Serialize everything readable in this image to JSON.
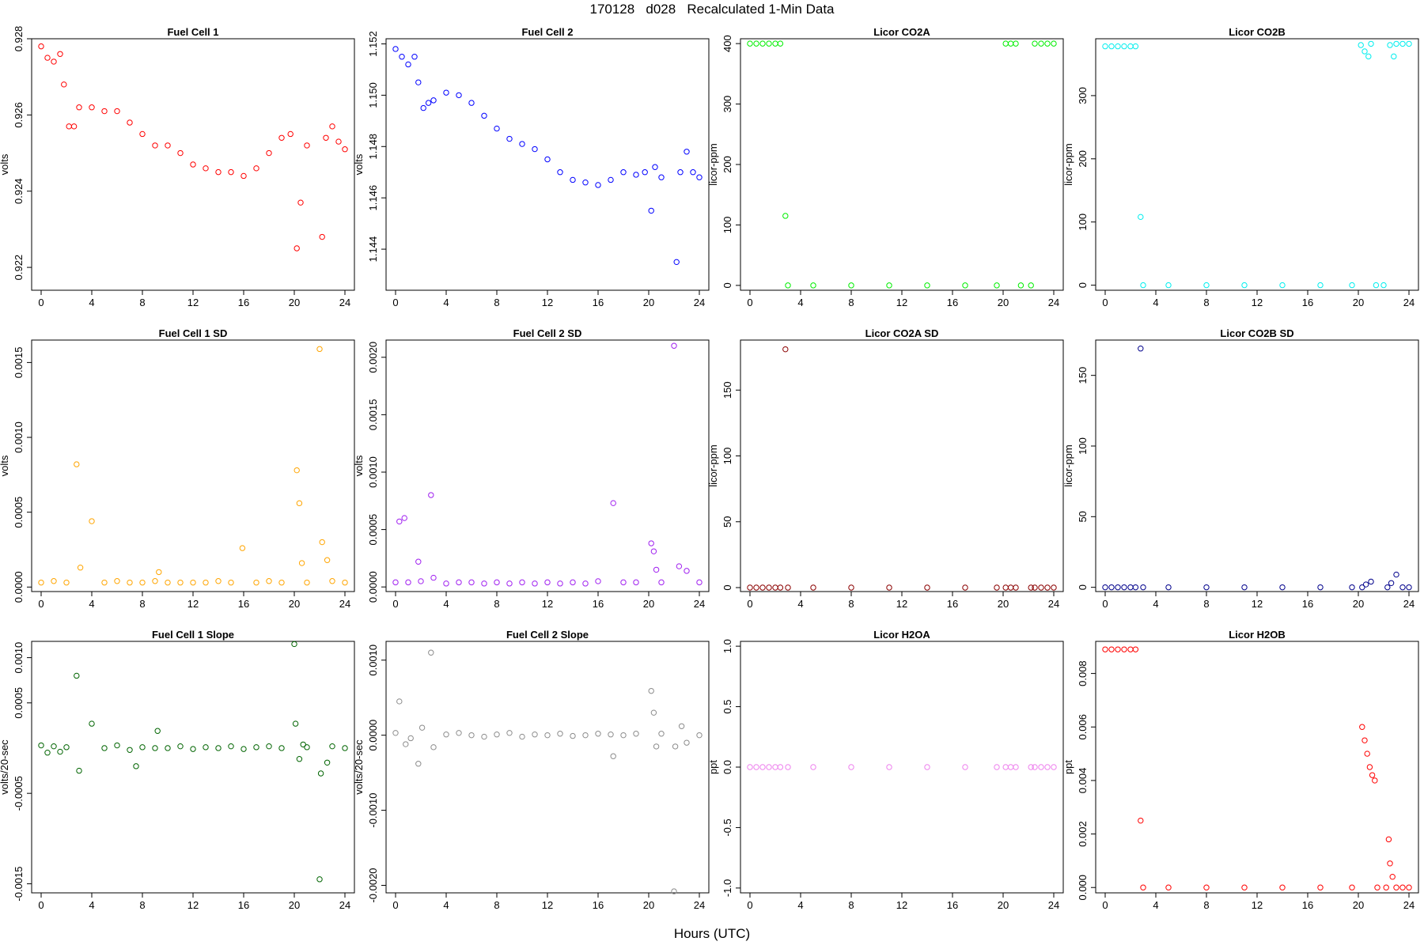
{
  "figure": {
    "title": "170128   d028   Recalculated 1-Min Data",
    "xlabel": "Hours (UTC)"
  },
  "chart_data": [
    {
      "type": "scatter",
      "title": "Fuel Cell 1",
      "ylabel": "volts",
      "color": "#ff0000",
      "xlim": [
        0,
        24
      ],
      "ylim": [
        0.9214,
        0.928
      ],
      "xticks": [
        0,
        4,
        8,
        12,
        16,
        20,
        24
      ],
      "yticks": [
        0.922,
        0.924,
        0.926,
        0.928
      ],
      "ytick_labels": [
        "0.922",
        "0.924",
        "0.926",
        "0.928"
      ],
      "series": [
        {
          "name": "Fuel Cell 1",
          "x": [
            0,
            0.5,
            1,
            1.5,
            1.8,
            2.2,
            2.6,
            3,
            4,
            5,
            6,
            7,
            8,
            9,
            10,
            11,
            12,
            13,
            14,
            15,
            16,
            17,
            18,
            19,
            19.7,
            20.2,
            20.5,
            21,
            22.2,
            22.5,
            23,
            23.5,
            24
          ],
          "y": [
            0.9278,
            0.9275,
            0.9274,
            0.9276,
            0.9268,
            0.9257,
            0.9257,
            0.9262,
            0.9262,
            0.9261,
            0.9261,
            0.9258,
            0.9255,
            0.9252,
            0.9252,
            0.925,
            0.9247,
            0.9246,
            0.9245,
            0.9245,
            0.9244,
            0.9246,
            0.925,
            0.9254,
            0.9255,
            0.9225,
            0.9237,
            0.9252,
            0.9228,
            0.9254,
            0.9257,
            0.9253,
            0.9251
          ]
        }
      ]
    },
    {
      "type": "scatter",
      "title": "Fuel Cell 2",
      "ylabel": "volts",
      "color": "#0000ff",
      "xlim": [
        0,
        24
      ],
      "ylim": [
        1.1424,
        1.1522
      ],
      "xticks": [
        0,
        4,
        8,
        12,
        16,
        20,
        24
      ],
      "yticks": [
        1.144,
        1.146,
        1.148,
        1.15,
        1.152
      ],
      "ytick_labels": [
        "1.144",
        "1.146",
        "1.148",
        "1.150",
        "1.152"
      ],
      "series": [
        {
          "name": "Fuel Cell 2",
          "x": [
            0,
            0.5,
            1,
            1.5,
            1.8,
            2.2,
            2.6,
            3,
            4,
            5,
            6,
            7,
            8,
            9,
            10,
            11,
            12,
            13,
            14,
            15,
            16,
            17,
            18,
            19,
            19.7,
            20.2,
            20.5,
            21,
            22.2,
            22.5,
            23,
            23.5,
            24
          ],
          "y": [
            1.1518,
            1.1515,
            1.1512,
            1.1515,
            1.1505,
            1.1495,
            1.1497,
            1.1498,
            1.1501,
            1.15,
            1.1497,
            1.1492,
            1.1487,
            1.1483,
            1.1481,
            1.1479,
            1.1475,
            1.147,
            1.1467,
            1.1466,
            1.1465,
            1.1467,
            1.147,
            1.1469,
            1.147,
            1.1455,
            1.1472,
            1.1468,
            1.1435,
            1.147,
            1.1478,
            1.147,
            1.1468
          ]
        }
      ]
    },
    {
      "type": "scatter",
      "title": "Licor CO2A",
      "ylabel": "licor-ppm",
      "color": "#00ee00",
      "xlim": [
        0,
        24
      ],
      "ylim": [
        -8,
        408
      ],
      "xticks": [
        0,
        4,
        8,
        12,
        16,
        20,
        24
      ],
      "yticks": [
        0,
        100,
        200,
        300,
        400
      ],
      "ytick_labels": [
        "0",
        "100",
        "200",
        "300",
        "400"
      ],
      "series": [
        {
          "name": "Licor CO2A",
          "x": [
            0,
            0.5,
            1,
            1.5,
            2,
            2.4,
            2.8,
            3,
            5,
            8,
            11,
            14,
            17,
            19.5,
            20.2,
            20.6,
            21,
            21.4,
            22.2,
            22.5,
            23,
            23.5,
            24
          ],
          "y": [
            400,
            400,
            400,
            400,
            400,
            400,
            115,
            0,
            0,
            0,
            0,
            0,
            0,
            0,
            400,
            400,
            400,
            0,
            0,
            400,
            400,
            400,
            400
          ]
        }
      ]
    },
    {
      "type": "scatter",
      "title": "Licor CO2B",
      "ylabel": "licor-ppm",
      "color": "#00eeee",
      "xlim": [
        0,
        24
      ],
      "ylim": [
        -8,
        390
      ],
      "xticks": [
        0,
        4,
        8,
        12,
        16,
        20,
        24
      ],
      "yticks": [
        0,
        100,
        200,
        300
      ],
      "ytick_labels": [
        "0",
        "100",
        "200",
        "300"
      ],
      "series": [
        {
          "name": "Licor CO2B",
          "x": [
            0,
            0.5,
            1,
            1.5,
            2,
            2.4,
            2.8,
            3,
            5,
            8,
            11,
            14,
            17,
            19.5,
            20.2,
            20.5,
            20.8,
            21,
            21.4,
            22,
            22.5,
            22.8,
            23,
            23.5,
            24
          ],
          "y": [
            378,
            378,
            378,
            378,
            378,
            378,
            108,
            0,
            0,
            0,
            0,
            0,
            0,
            0,
            380,
            370,
            362,
            382,
            0,
            0,
            380,
            362,
            382,
            382,
            382
          ]
        }
      ]
    },
    {
      "type": "scatter",
      "title": "Fuel Cell 1 SD",
      "ylabel": "volts",
      "color": "#ffa500",
      "xlim": [
        0,
        24
      ],
      "ylim": [
        -3e-05,
        0.00165
      ],
      "xticks": [
        0,
        4,
        8,
        12,
        16,
        20,
        24
      ],
      "yticks": [
        0,
        0.0005,
        0.001,
        0.0015
      ],
      "ytick_labels": [
        "0.0000",
        "0.0005",
        "0.0010",
        "0.0015"
      ],
      "series": [
        {
          "name": "Fuel Cell 1 SD",
          "x": [
            0,
            1,
            2,
            2.8,
            3.1,
            4,
            5,
            6,
            7,
            8,
            9,
            9.3,
            10,
            11,
            12,
            13,
            14,
            15,
            15.9,
            17,
            18,
            19,
            20.2,
            20.4,
            20.6,
            21,
            22,
            22.2,
            22.6,
            23,
            24
          ],
          "y": [
            3e-05,
            4e-05,
            3e-05,
            0.00082,
            0.00013,
            0.00044,
            3e-05,
            4e-05,
            3e-05,
            3e-05,
            4e-05,
            0.0001,
            3e-05,
            3e-05,
            3e-05,
            3e-05,
            4e-05,
            3e-05,
            0.00026,
            3e-05,
            4e-05,
            3e-05,
            0.00078,
            0.00056,
            0.00016,
            3e-05,
            0.00159,
            0.0003,
            0.00018,
            4e-05,
            3e-05
          ]
        }
      ]
    },
    {
      "type": "scatter",
      "title": "Fuel Cell 2 SD",
      "ylabel": "volts",
      "color": "#a020f0",
      "xlim": [
        0,
        24
      ],
      "ylim": [
        -4e-05,
        0.00215
      ],
      "xticks": [
        0,
        4,
        8,
        12,
        16,
        20,
        24
      ],
      "yticks": [
        0,
        0.0005,
        0.001,
        0.0015,
        0.002
      ],
      "ytick_labels": [
        "0.0000",
        "0.0005",
        "0.0010",
        "0.0015",
        "0.0020"
      ],
      "series": [
        {
          "name": "Fuel Cell 2 SD",
          "x": [
            0,
            0.3,
            0.7,
            1,
            1.8,
            2,
            2.8,
            3,
            4,
            5,
            6,
            7,
            8,
            9,
            10,
            11,
            12,
            13,
            14,
            15,
            16,
            17.2,
            18,
            19,
            20.2,
            20.4,
            20.6,
            21,
            22,
            22.4,
            23,
            24
          ],
          "y": [
            4e-05,
            0.00057,
            0.0006,
            4e-05,
            0.00022,
            5e-05,
            0.0008,
            8e-05,
            3e-05,
            4e-05,
            4e-05,
            3e-05,
            4e-05,
            3e-05,
            4e-05,
            3e-05,
            4e-05,
            3e-05,
            4e-05,
            3e-05,
            5e-05,
            0.00073,
            4e-05,
            4e-05,
            0.00038,
            0.00031,
            0.00015,
            4e-05,
            0.0021,
            0.00018,
            0.00014,
            4e-05
          ]
        }
      ]
    },
    {
      "type": "scatter",
      "title": "Licor CO2A SD",
      "ylabel": "licor-ppm",
      "color": "#8b0000",
      "xlim": [
        0,
        24
      ],
      "ylim": [
        -3,
        188
      ],
      "xticks": [
        0,
        4,
        8,
        12,
        16,
        20,
        24
      ],
      "yticks": [
        0,
        50,
        100,
        150
      ],
      "ytick_labels": [
        "0",
        "50",
        "100",
        "150"
      ],
      "series": [
        {
          "name": "Licor CO2A SD",
          "x": [
            0,
            0.5,
            1,
            1.5,
            2,
            2.4,
            2.8,
            3,
            5,
            8,
            11,
            14,
            17,
            19.5,
            20.2,
            20.6,
            21,
            22.2,
            22.5,
            23,
            23.5,
            24
          ],
          "y": [
            0,
            0,
            0,
            0,
            0,
            0,
            181,
            0,
            0,
            0,
            0,
            0,
            0,
            0,
            0,
            0,
            0,
            0,
            0,
            0,
            0,
            0
          ]
        }
      ]
    },
    {
      "type": "scatter",
      "title": "Licor CO2B SD",
      "ylabel": "licor-ppm",
      "color": "#00008b",
      "xlim": [
        0,
        24
      ],
      "ylim": [
        -3,
        175
      ],
      "xticks": [
        0,
        4,
        8,
        12,
        16,
        20,
        24
      ],
      "yticks": [
        0,
        50,
        100,
        150
      ],
      "ytick_labels": [
        "0",
        "50",
        "100",
        "150"
      ],
      "series": [
        {
          "name": "Licor CO2B SD",
          "x": [
            0,
            0.5,
            1,
            1.5,
            2,
            2.4,
            2.8,
            3,
            5,
            8,
            11,
            14,
            17,
            19.5,
            20.3,
            20.6,
            21,
            22.3,
            22.6,
            23,
            23.5,
            24
          ],
          "y": [
            0,
            0,
            0,
            0,
            0,
            0,
            169,
            0,
            0,
            0,
            0,
            0,
            0,
            0,
            0,
            2,
            4,
            0,
            3,
            9,
            0,
            0
          ]
        }
      ]
    },
    {
      "type": "scatter",
      "title": "Fuel Cell 1 Slope",
      "ylabel": "volts/20-sec",
      "color": "#006400",
      "xlim": [
        0,
        24
      ],
      "ylim": [
        -0.0016,
        0.00118
      ],
      "xticks": [
        0,
        4,
        8,
        12,
        16,
        20,
        24
      ],
      "yticks": [
        -0.0015,
        -0.0005,
        0.0005,
        0.001
      ],
      "ytick_labels": [
        "-0.0015",
        "-0.0005",
        "0.0005",
        "0.0010"
      ],
      "series": [
        {
          "name": "Fuel Cell 1 Slope",
          "x": [
            0,
            0.5,
            1,
            1.5,
            2,
            2.8,
            3,
            4,
            5,
            6,
            7,
            7.5,
            8,
            9,
            9.2,
            10,
            11,
            12,
            13,
            14,
            15,
            16,
            17,
            18,
            19,
            20,
            20.1,
            20.4,
            20.7,
            21,
            22,
            22.1,
            22.6,
            23,
            24
          ],
          "y": [
            3e-05,
            -5e-05,
            2e-05,
            -4e-05,
            1e-05,
            0.0008,
            -0.00025,
            0.00027,
            0,
            3e-05,
            -2e-05,
            -0.0002,
            1e-05,
            0,
            0.00019,
            0,
            2e-05,
            -1e-05,
            1e-05,
            0,
            2e-05,
            -1e-05,
            1e-05,
            2e-05,
            0,
            0.00115,
            0.00027,
            -0.00012,
            4e-05,
            1e-05,
            -0.00145,
            -0.00028,
            -0.00016,
            2e-05,
            0
          ]
        }
      ]
    },
    {
      "type": "scatter",
      "title": "Fuel Cell 2 Slope",
      "ylabel": "volts/20-sec",
      "color": "#8c8c8c",
      "xlim": [
        0,
        24
      ],
      "ylim": [
        -0.0021,
        0.00125
      ],
      "xticks": [
        0,
        4,
        8,
        12,
        16,
        20,
        24
      ],
      "yticks": [
        -0.002,
        -0.001,
        0,
        0.001
      ],
      "ytick_labels": [
        "-0.0020",
        "-0.0010",
        "0.0000",
        "0.0010"
      ],
      "series": [
        {
          "name": "Fuel Cell 2 Slope",
          "x": [
            0,
            0.3,
            0.8,
            1.2,
            1.8,
            2.1,
            2.8,
            3,
            4,
            5,
            6,
            7,
            8,
            9,
            10,
            11,
            12,
            13,
            14,
            15,
            16,
            17,
            17.2,
            18,
            19,
            20.2,
            20.4,
            20.6,
            21,
            22,
            22.1,
            22.6,
            23,
            24
          ],
          "y": [
            3e-05,
            0.00045,
            -0.00012,
            -4e-05,
            -0.00038,
            0.0001,
            0.0011,
            -0.00016,
            1e-05,
            3e-05,
            0,
            -2e-05,
            1e-05,
            3e-05,
            -2e-05,
            1e-05,
            0,
            2e-05,
            -1e-05,
            0,
            2e-05,
            1e-05,
            -0.00028,
            0,
            2e-05,
            0.00059,
            0.0003,
            -0.00015,
            2e-05,
            -0.00208,
            -0.00015,
            0.00012,
            -0.0001,
            0
          ]
        }
      ]
    },
    {
      "type": "scatter",
      "title": "Licor H2OA",
      "ylabel": "ppt",
      "color": "#ee82ee",
      "xlim": [
        0,
        24
      ],
      "ylim": [
        -1.04,
        1.04
      ],
      "xticks": [
        0,
        4,
        8,
        12,
        16,
        20,
        24
      ],
      "yticks": [
        -1,
        -0.5,
        0,
        0.5,
        1
      ],
      "ytick_labels": [
        "-1.0",
        "-0.5",
        "0.0",
        "0.5",
        "1.0"
      ],
      "series": [
        {
          "name": "Licor H2OA",
          "x": [
            0,
            0.5,
            1,
            1.5,
            2,
            2.4,
            3,
            5,
            8,
            11,
            14,
            17,
            19.5,
            20.2,
            20.6,
            21,
            22.2,
            22.5,
            23,
            23.5,
            24
          ],
          "y": [
            0,
            0,
            0,
            0,
            0,
            0,
            0,
            0,
            0,
            0,
            0,
            0,
            0,
            0,
            0,
            0,
            0,
            0,
            0,
            0,
            0
          ]
        }
      ]
    },
    {
      "type": "scatter",
      "title": "Licor H2OB",
      "ylabel": "ppt",
      "color": "#ff0000",
      "xlim": [
        0,
        24
      ],
      "ylim": [
        -0.0002,
        0.0092
      ],
      "xticks": [
        0,
        4,
        8,
        12,
        16,
        20,
        24
      ],
      "yticks": [
        0,
        0.002,
        0.004,
        0.006,
        0.008
      ],
      "ytick_labels": [
        "0.000",
        "0.002",
        "0.004",
        "0.006",
        "0.008"
      ],
      "series": [
        {
          "name": "Licor H2OB",
          "x": [
            0,
            0.5,
            1,
            1.5,
            2,
            2.4,
            2.8,
            3,
            5,
            8,
            11,
            14,
            17,
            19.5,
            20.3,
            20.5,
            20.7,
            20.9,
            21.1,
            21.3,
            21.5,
            22.2,
            22.4,
            22.5,
            22.7,
            23,
            23.5,
            24
          ],
          "y": [
            0.0089,
            0.0089,
            0.0089,
            0.0089,
            0.0089,
            0.0089,
            0.0025,
            0,
            0,
            0,
            0,
            0,
            0,
            0,
            0.006,
            0.0055,
            0.005,
            0.0045,
            0.0042,
            0.004,
            0,
            0,
            0.0018,
            0.0009,
            0.0004,
            0,
            0,
            0
          ]
        }
      ]
    }
  ]
}
